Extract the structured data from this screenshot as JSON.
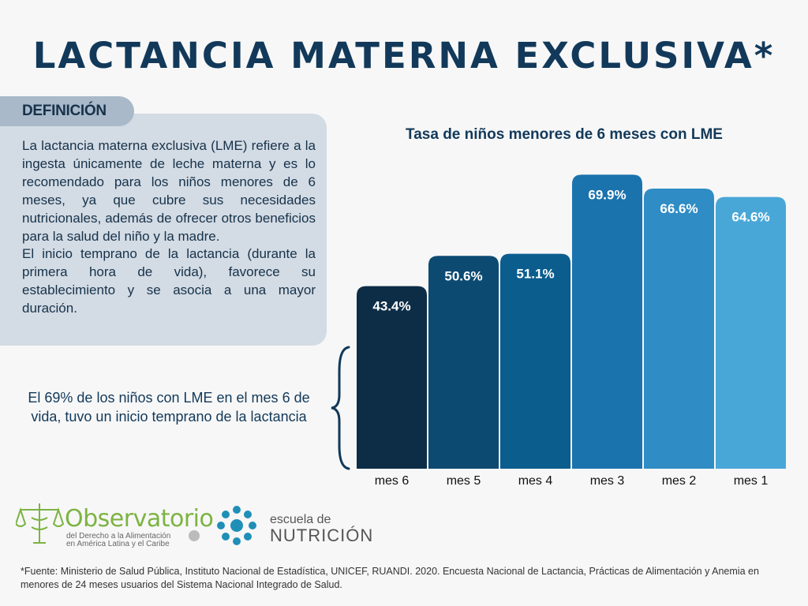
{
  "header": {
    "title": "LACTANCIA MATERNA EXCLUSIVA*"
  },
  "definition": {
    "label": "DEFINICIÓN",
    "paragraph1": "La lactancia materna exclusiva (LME) refiere a la ingesta únicamente de leche materna y es lo recomendado para los niños menores de 6 meses, ya que cubre sus necesidades nutricionales, además de ofrecer otros beneficios para la salud del niño y la madre.",
    "paragraph2": "El inicio temprano de la lactancia (durante la primera hora de vida), favorece su establecimiento y se asocia a una mayor duración."
  },
  "note": "El 69% de los niños con LME en el mes 6 de vida, tuvo un inicio temprano de la lactancia",
  "chart_data": {
    "type": "bar",
    "title": "Tasa de niños menores de 6 meses con LME",
    "categories": [
      "mes 6",
      "mes 5",
      "mes 4",
      "mes 3",
      "mes 2",
      "mes 1"
    ],
    "values": [
      43.4,
      50.6,
      51.1,
      69.9,
      66.6,
      64.6
    ],
    "value_labels": [
      "43.4%",
      "50.6%",
      "51.1%",
      "69.9%",
      "66.6%",
      "64.6%"
    ],
    "colors": [
      "#0d2d47",
      "#0c4a72",
      "#0b5d8e",
      "#1a73ad",
      "#2f8cc4",
      "#49a7d8"
    ],
    "xlabel": "",
    "ylabel": "",
    "ylim": [
      0,
      100
    ],
    "grid": false
  },
  "logos": {
    "observatorio": {
      "name": "Observatorio",
      "line1": "del Derecho a la Alimentación",
      "line2": "en América Latina y el Caribe"
    },
    "escuela": {
      "top": "escuela de",
      "bottom": "NUTRICIÓN"
    }
  },
  "colors": {
    "title": "#12395a",
    "obs_green": "#7cb342",
    "esc_blue": "#1f8fb8"
  },
  "footer": {
    "source": "*Fuente: Ministerio de Salud Pública, Instituto Nacional de Estadística, UNICEF, RUANDI. 2020. Encuesta Nacional de Lactancia, Prácticas de Alimentación y Anemia en menores de 24 meses usuarios del Sistema Nacional Integrado de Salud."
  }
}
